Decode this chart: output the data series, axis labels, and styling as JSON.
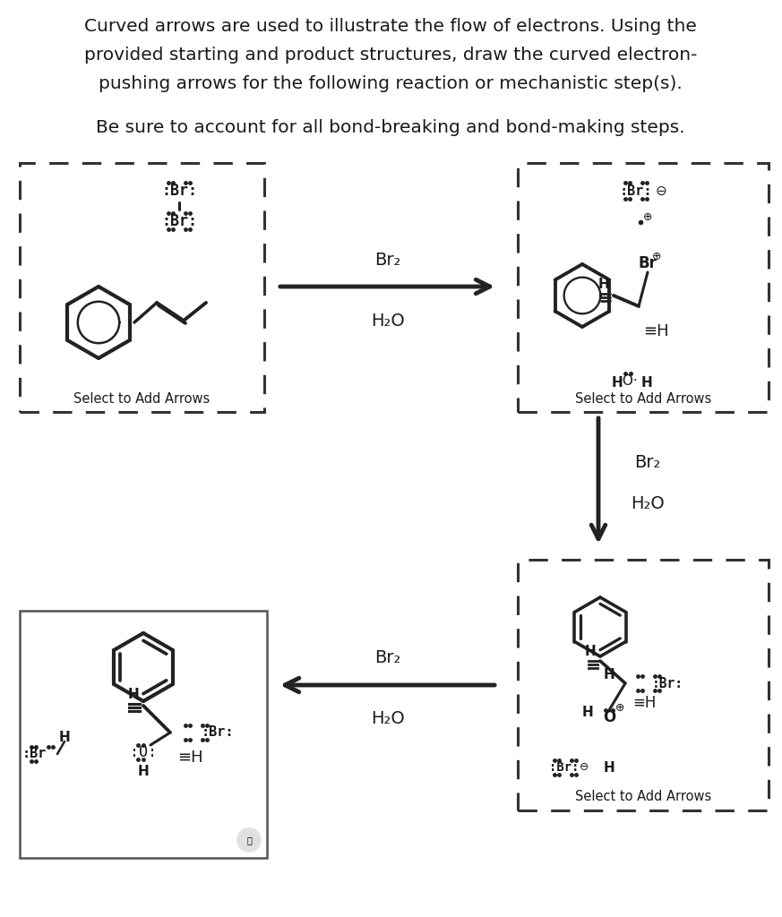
{
  "title_line1": "Curved arrows are used to illustrate the flow of electrons. Using the",
  "title_line2": "provided starting and product structures, draw the curved electron-",
  "title_line3": "pushing arrows for the following reaction or mechanistic step(s).",
  "subtitle": "Be sure to account for all bond-breaking and bond-making steps.",
  "reagent1a": "Br₂",
  "reagent1b": "H₂O",
  "reagent2a": "Br₂",
  "reagent2b": "H₂O",
  "label_select": "Select to Add Arrows",
  "bg_color": "#ffffff",
  "text_color": "#1a1a1a",
  "dark": "#222222"
}
